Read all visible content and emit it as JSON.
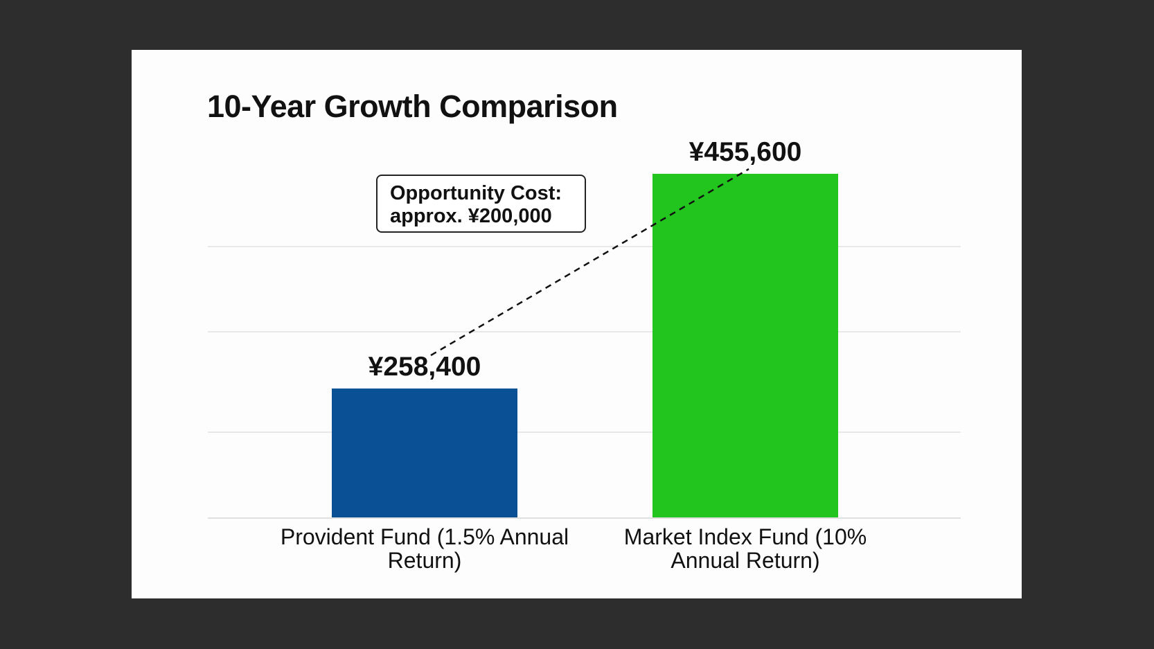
{
  "chart_data": {
    "type": "bar",
    "title": "10-Year Growth Comparison",
    "categories": [
      "Provident Fund (1.5% Annual Return)",
      "Market Index Fund (10% Annual Return)"
    ],
    "category_lines": [
      [
        "Provident Fund (1.5% Annual",
        "Return)"
      ],
      [
        "Market Index Fund (10%",
        "Annual Return)"
      ]
    ],
    "values": [
      258400,
      455600
    ],
    "value_labels": [
      "¥258,400",
      "¥455,600"
    ],
    "colors": [
      "#0a5094",
      "#22c41e"
    ],
    "ylim": [
      140000,
      460000
    ],
    "grid": true,
    "xlabel": "",
    "ylabel": "",
    "annotation": {
      "line1": "Opportunity Cost:",
      "line2": "approx. ¥200,000"
    }
  }
}
